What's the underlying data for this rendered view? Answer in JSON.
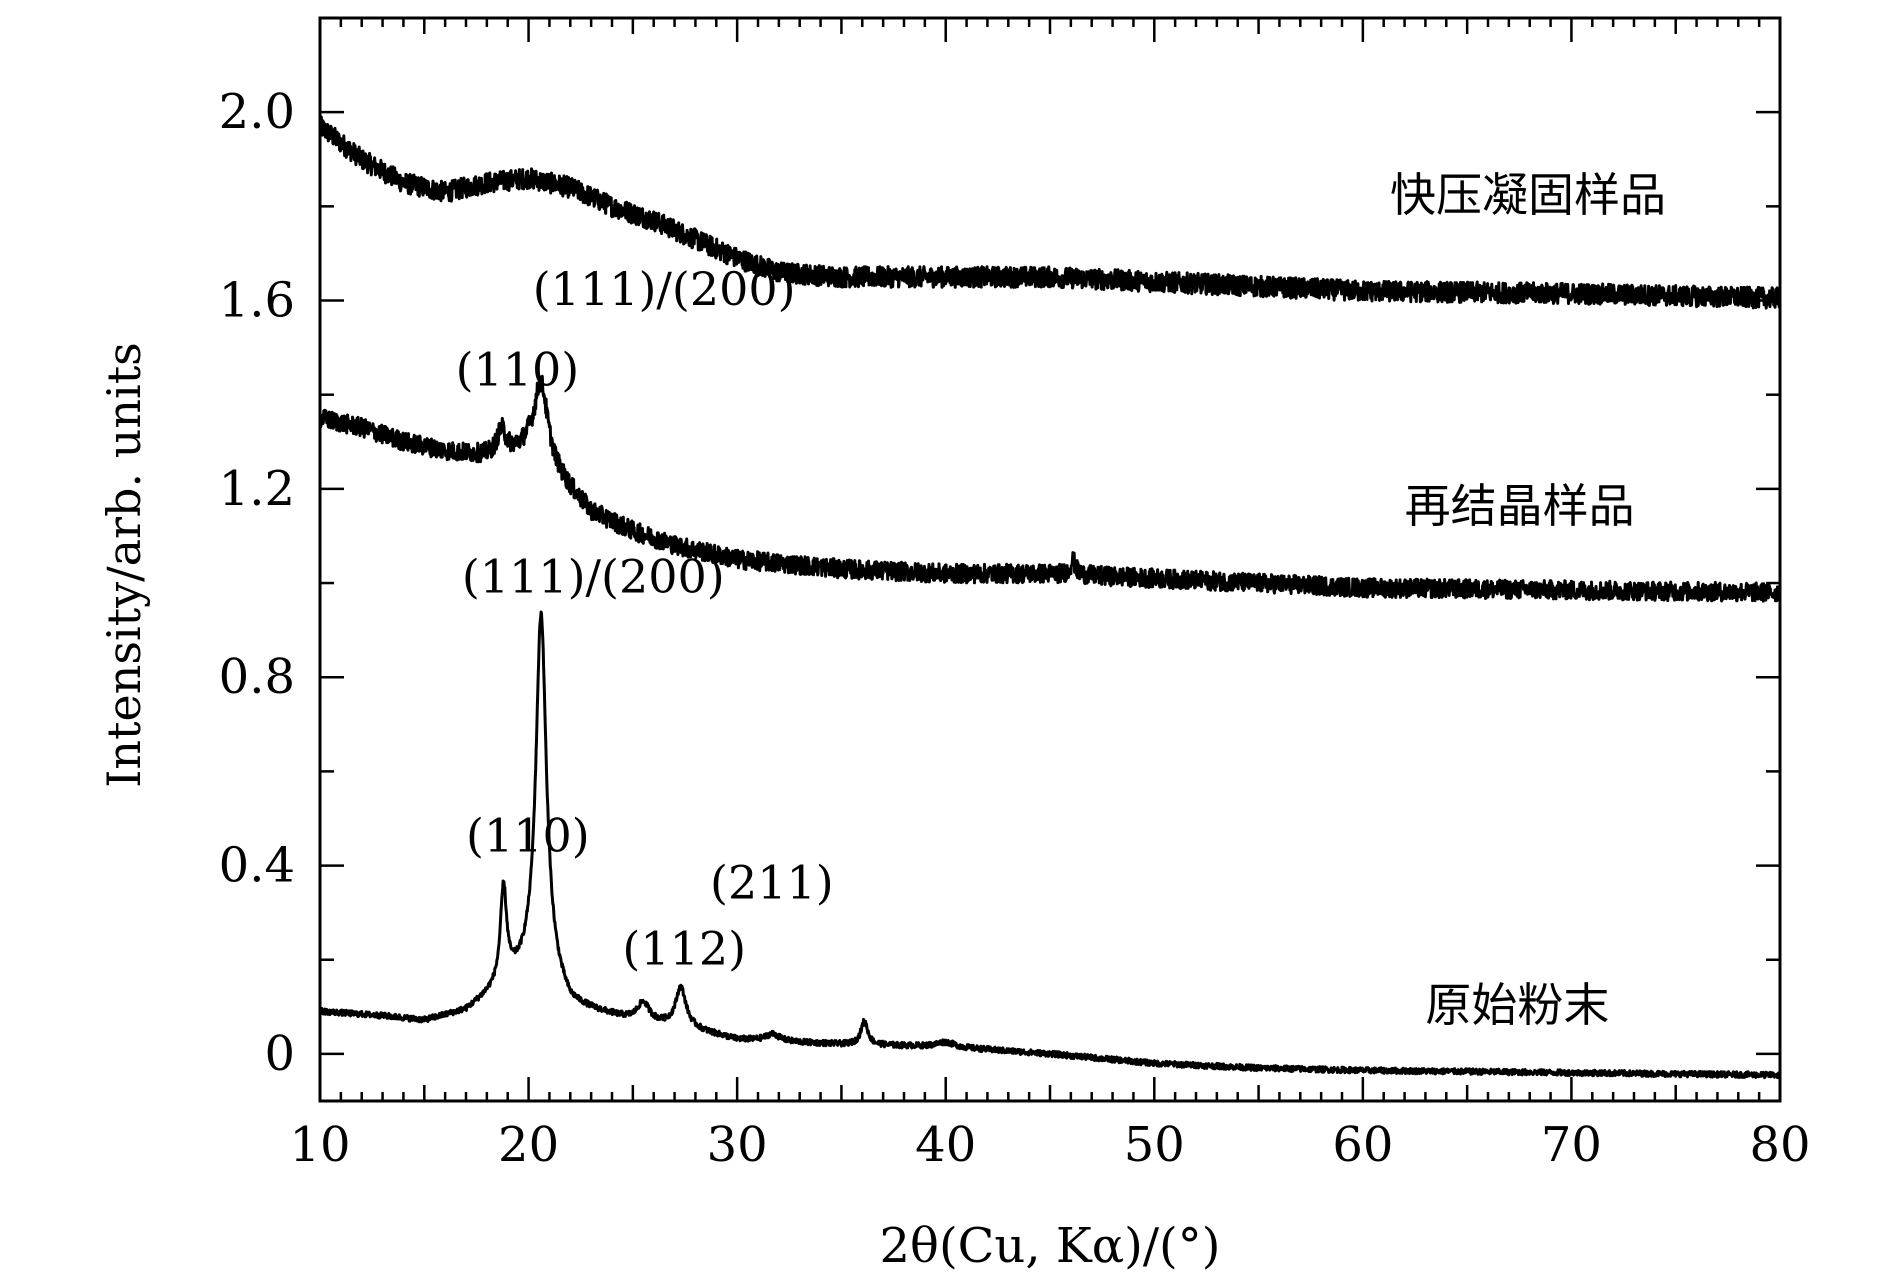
{
  "chart_data": {
    "type": "line",
    "xlabel": "2θ(Cu, Kα)/(°)",
    "ylabel": "Intensity/arb. units",
    "xlim": [
      10,
      80
    ],
    "ylim": [
      -0.1,
      2.2
    ],
    "x_ticks": [
      10,
      20,
      30,
      40,
      50,
      60,
      70,
      80
    ],
    "x_tick_labels": [
      "10",
      "20",
      "30",
      "40",
      "50",
      "60",
      "70",
      "80"
    ],
    "y_ticks": [
      0,
      0.4,
      0.8,
      1.2,
      1.6,
      2.0
    ],
    "y_tick_labels": [
      "0",
      "0.4",
      "0.8",
      "1.2",
      "1.6",
      "2.0"
    ],
    "grid": false,
    "series": [
      {
        "name": "快压凝固样品",
        "noise": 0.022,
        "color": "#000000",
        "points": [
          [
            10,
            1.97
          ],
          [
            12,
            1.9
          ],
          [
            14,
            1.85
          ],
          [
            16,
            1.83
          ],
          [
            18,
            1.85
          ],
          [
            20,
            1.86
          ],
          [
            22,
            1.84
          ],
          [
            24,
            1.8
          ],
          [
            26,
            1.77
          ],
          [
            28,
            1.73
          ],
          [
            30,
            1.69
          ],
          [
            32,
            1.66
          ],
          [
            35,
            1.65
          ],
          [
            38,
            1.65
          ],
          [
            40,
            1.65
          ],
          [
            45,
            1.65
          ],
          [
            50,
            1.64
          ],
          [
            55,
            1.63
          ],
          [
            60,
            1.62
          ],
          [
            70,
            1.615
          ],
          [
            80,
            1.605
          ]
        ],
        "peaks": []
      },
      {
        "name": "再结晶样品",
        "noise": 0.02,
        "color": "#000000",
        "points": [
          [
            10,
            1.35
          ],
          [
            12,
            1.33
          ],
          [
            14,
            1.3
          ],
          [
            16,
            1.28
          ],
          [
            18,
            1.27
          ],
          [
            20,
            1.28
          ],
          [
            21.5,
            1.22
          ],
          [
            23,
            1.15
          ],
          [
            25,
            1.11
          ],
          [
            27,
            1.08
          ],
          [
            30,
            1.05
          ],
          [
            35,
            1.03
          ],
          [
            40,
            1.02
          ],
          [
            45,
            1.02
          ],
          [
            50,
            1.01
          ],
          [
            55,
            1.0
          ],
          [
            60,
            0.99
          ],
          [
            70,
            0.985
          ],
          [
            80,
            0.98
          ]
        ],
        "peaks": [
          {
            "x": 18.7,
            "height": 0.05,
            "width": 0.25
          },
          {
            "x": 20.6,
            "height": 0.17,
            "width": 0.4
          },
          {
            "x": 46.1,
            "height": 0.03,
            "width": 0.15
          }
        ]
      },
      {
        "name": "原始粉末",
        "noise": 0.006,
        "color": "#000000",
        "points": [
          [
            10,
            0.09
          ],
          [
            13,
            0.08
          ],
          [
            15,
            0.07
          ],
          [
            17,
            0.09
          ],
          [
            18,
            0.12
          ],
          [
            19,
            0.15
          ],
          [
            20,
            0.17
          ],
          [
            21,
            0.16
          ],
          [
            22,
            0.1
          ],
          [
            23,
            0.09
          ],
          [
            25,
            0.07
          ],
          [
            28,
            0.05
          ],
          [
            30,
            0.03
          ],
          [
            35,
            0.02
          ],
          [
            40,
            0.015
          ],
          [
            45,
            0.0
          ],
          [
            50,
            -0.02
          ],
          [
            55,
            -0.03
          ],
          [
            60,
            -0.035
          ],
          [
            70,
            -0.04
          ],
          [
            80,
            -0.045
          ]
        ],
        "peaks": [
          {
            "x": 18.8,
            "height": 0.2,
            "width": 0.18
          },
          {
            "x": 20.6,
            "height": 0.77,
            "width": 0.3
          },
          {
            "x": 25.5,
            "height": 0.04,
            "width": 0.35
          },
          {
            "x": 27.3,
            "height": 0.085,
            "width": 0.3
          },
          {
            "x": 31.7,
            "height": 0.015,
            "width": 0.4
          },
          {
            "x": 36.1,
            "height": 0.05,
            "width": 0.2
          },
          {
            "x": 40.0,
            "height": 0.01,
            "width": 0.5
          }
        ]
      }
    ],
    "series_labels": [
      {
        "text": "快压凝固样品",
        "x": 61.3,
        "y": 1.79
      },
      {
        "text": "再结晶样品",
        "x": 62.0,
        "y": 1.13
      },
      {
        "text": "原始粉末",
        "x": 63.0,
        "y": 0.07
      }
    ],
    "annotations": [
      {
        "text": "(111)/(200)",
        "x": 20.2,
        "y": 1.59
      },
      {
        "text": "(110)",
        "x": 16.5,
        "y": 1.42
      },
      {
        "text": "(111)/(200)",
        "x": 16.8,
        "y": 0.98
      },
      {
        "text": "(110)",
        "x": 17.0,
        "y": 0.43
      },
      {
        "text": "(211)",
        "x": 28.7,
        "y": 0.33
      },
      {
        "text": "(112)",
        "x": 24.5,
        "y": 0.19
      }
    ]
  }
}
